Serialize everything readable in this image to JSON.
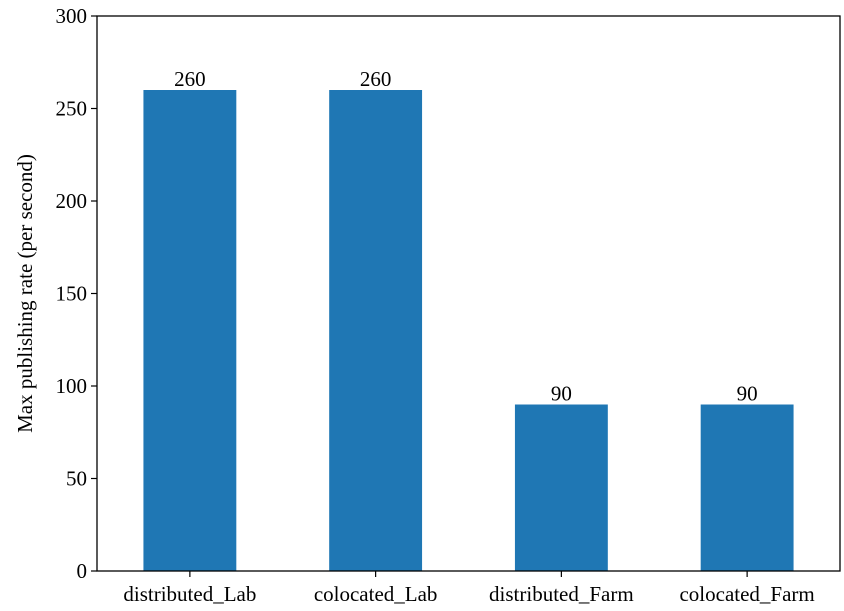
{
  "chart_data": {
    "type": "bar",
    "categories": [
      "distributed_Lab",
      "colocated_Lab",
      "distributed_Farm",
      "colocated_Farm"
    ],
    "values": [
      260,
      260,
      90,
      90
    ],
    "data_labels": [
      "260",
      "260",
      "90",
      "90"
    ],
    "title": "",
    "xlabel": "",
    "ylabel": "Max publishing rate (per second)",
    "ylim": [
      0,
      300
    ],
    "yticks": [
      0,
      50,
      100,
      150,
      200,
      250,
      300
    ],
    "bar_color": "#1f77b4",
    "grid": false,
    "legend": "none"
  }
}
